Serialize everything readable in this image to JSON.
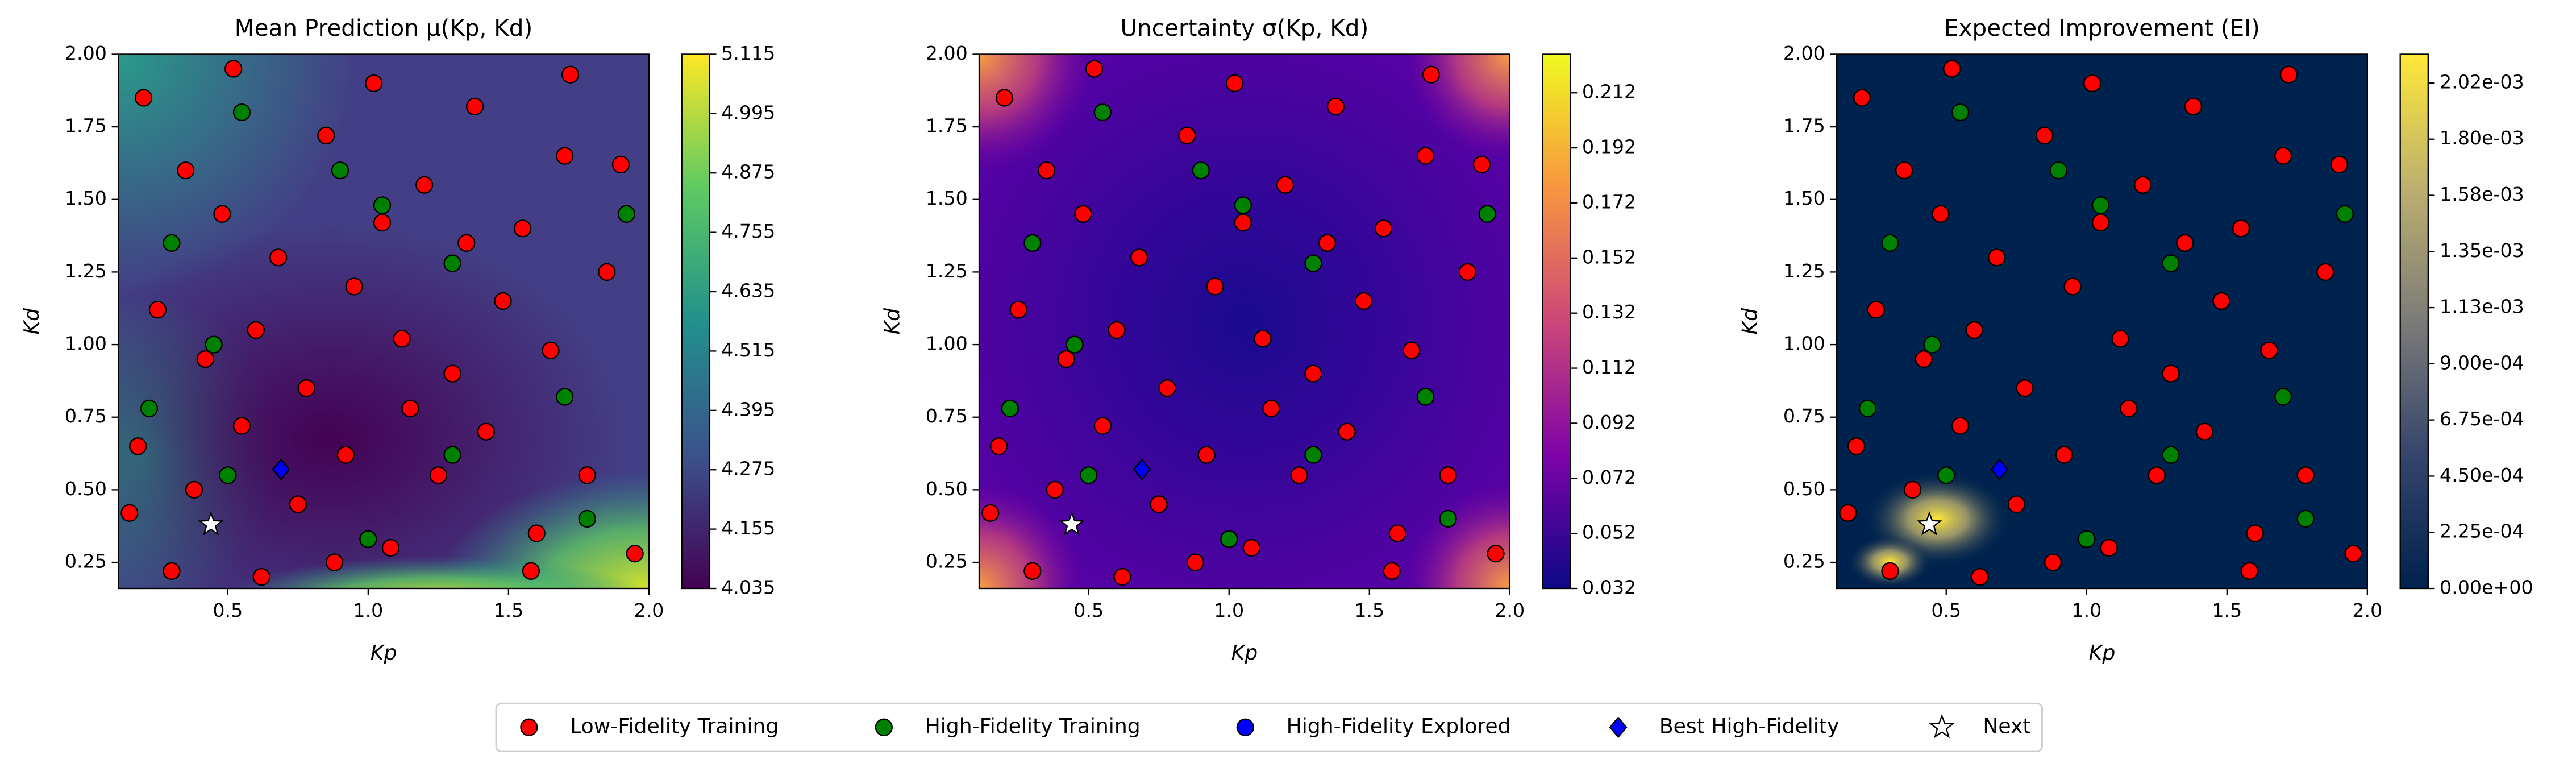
{
  "chart_data": {
    "type": "scatter",
    "xlabel": "Kp",
    "ylabel": "Kd",
    "xlim": [
      0.11,
      2.0
    ],
    "ylim": [
      0.16,
      2.0
    ],
    "xticks": [
      0.5,
      {
        "value": 1,
        "label": "1.0"
      },
      1.5,
      {
        "value": 2,
        "label": "2.0"
      }
    ],
    "yticks": [
      0.25,
      {
        "value": 0.5,
        "label": "0.50"
      },
      0.75,
      {
        "value": 1,
        "label": "1.00"
      },
      1.25,
      {
        "value": 1.5,
        "label": "1.50"
      },
      1.75,
      {
        "value": 2,
        "label": "2.00"
      }
    ],
    "panels": [
      {
        "title": "Mean Prediction μ(Kp, Kd)",
        "colormap": "viridis",
        "clim": [
          4.035,
          5.115
        ],
        "cticks": [
          4.035,
          4.155,
          4.275,
          4.395,
          4.515,
          4.635,
          4.755,
          4.875,
          4.995,
          5.115
        ]
      },
      {
        "title": "Uncertainty σ(Kp, Kd)",
        "colormap": "plasma",
        "clim": [
          0.032,
          0.226
        ],
        "cticks": [
          0.032,
          0.052,
          0.072,
          0.092,
          0.112,
          0.132,
          0.152,
          0.172,
          0.192,
          0.212
        ]
      },
      {
        "title": "Expected Improvement (EI)",
        "colormap": "cividis",
        "clim": [
          0,
          0.00214
        ],
        "cticks": [
          {
            "value": 0,
            "label": "0.00e+00"
          },
          {
            "value": 0.000225,
            "label": "2.25e-04"
          },
          {
            "value": 0.00045,
            "label": "4.50e-04"
          },
          {
            "value": 0.000675,
            "label": "6.75e-04"
          },
          {
            "value": 0.0009,
            "label": "9.00e-04"
          },
          {
            "value": 0.001125,
            "label": "1.13e-03"
          },
          {
            "value": 0.00135,
            "label": "1.35e-03"
          },
          {
            "value": 0.001575,
            "label": "1.58e-03"
          },
          {
            "value": 0.0018,
            "label": "1.80e-03"
          },
          {
            "value": 0.002025,
            "label": "2.02e-03"
          }
        ]
      }
    ],
    "series": [
      {
        "name": "Low-Fidelity Training",
        "color": "#ff0000",
        "marker": "o",
        "x": [
          0.2,
          0.35,
          0.52,
          0.68,
          0.85,
          1.02,
          1.2,
          1.38,
          1.55,
          1.72,
          1.9,
          0.25,
          0.42,
          0.6,
          0.78,
          0.95,
          1.12,
          1.3,
          1.48,
          1.65,
          1.85,
          0.18,
          0.38,
          0.55,
          0.75,
          0.92,
          1.08,
          1.25,
          1.42,
          1.6,
          1.78,
          1.95,
          0.3,
          0.62,
          0.88,
          1.15,
          1.35,
          1.7,
          0.48,
          1.05,
          1.58,
          0.15
        ],
        "values": [
          1.85,
          1.6,
          1.95,
          1.3,
          1.72,
          1.9,
          1.55,
          1.82,
          1.4,
          1.93,
          1.62,
          1.12,
          0.95,
          1.05,
          0.85,
          1.2,
          1.02,
          0.9,
          1.15,
          0.98,
          1.25,
          0.65,
          0.5,
          0.72,
          0.45,
          0.62,
          0.3,
          0.55,
          0.7,
          0.35,
          0.55,
          0.28,
          0.22,
          0.2,
          0.25,
          0.78,
          1.35,
          1.65,
          1.45,
          1.42,
          0.22,
          0.42
        ]
      },
      {
        "name": "High-Fidelity Training",
        "color": "#008000",
        "marker": "o",
        "x": [
          0.55,
          0.9,
          1.05,
          1.3,
          0.45,
          1.3,
          1.7,
          0.22,
          1.92,
          0.5,
          1.0,
          1.78,
          0.3
        ],
        "values": [
          1.8,
          1.6,
          1.48,
          1.28,
          1.0,
          0.62,
          0.82,
          0.78,
          1.45,
          0.55,
          0.33,
          0.4,
          1.35
        ]
      },
      {
        "name": "High-Fidelity Explored",
        "color": "#0000ff",
        "marker": "o",
        "x": [],
        "values": []
      },
      {
        "name": "Best High-Fidelity",
        "color": "#0000ff",
        "marker": "D",
        "x": [
          0.69
        ],
        "values": [
          0.57
        ]
      },
      {
        "name": "Next",
        "color": "#ffffff",
        "marker": "*",
        "x": [
          0.44
        ],
        "values": [
          0.38
        ]
      }
    ]
  }
}
